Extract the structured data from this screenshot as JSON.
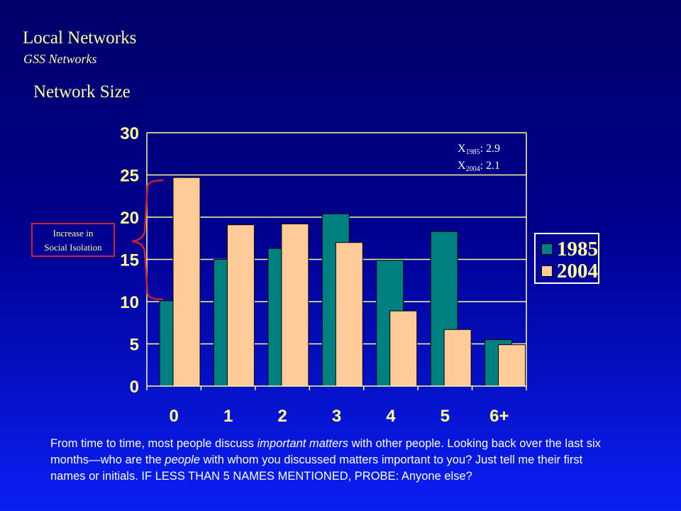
{
  "header": {
    "title": "Local Networks",
    "subtitle": "GSS Networks",
    "section_title": "Network Size"
  },
  "callout": {
    "line1": "Increase in",
    "line2": "Social Isolation",
    "color": "#cc2233"
  },
  "annotations": {
    "mean1_prefix": "X",
    "mean1_sub": "1985",
    "mean1_value": ": 2.9",
    "mean2_prefix": "X",
    "mean2_sub": "2004",
    "mean2_value": ": 2.1"
  },
  "footnote": {
    "part1": "From time to time, most people discuss ",
    "italic1": "important matters",
    "part2": " with other people. Looking back over the last six months—who are the ",
    "italic2": "people",
    "part3": " with whom you discussed matters important to you? Just tell me their first names or initials. IF LESS THAN 5 NAMES MENTIONED, PROBE: Anyone else?"
  },
  "colors": {
    "series_1985": "#008080",
    "series_2004": "#ffcc99",
    "text_yellow": "#ffff99"
  },
  "chart_data": {
    "type": "bar",
    "title": "",
    "xlabel": "",
    "ylabel": "",
    "categories": [
      "0",
      "1",
      "2",
      "3",
      "4",
      "5",
      "6+"
    ],
    "series": [
      {
        "name": "1985",
        "values": [
          10.1,
          15.0,
          16.3,
          20.4,
          14.9,
          18.3,
          5.5
        ]
      },
      {
        "name": "2004",
        "values": [
          24.7,
          19.1,
          19.2,
          17.0,
          8.9,
          6.7,
          4.9
        ]
      }
    ],
    "ylim": [
      0,
      30
    ],
    "yticks": [
      "0",
      "5",
      "10",
      "15",
      "20",
      "25",
      "30"
    ],
    "grid": true,
    "legend": "right"
  }
}
